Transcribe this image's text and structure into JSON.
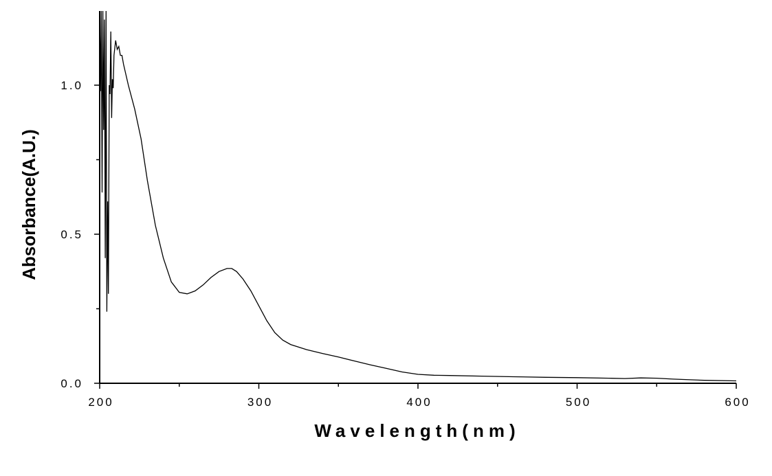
{
  "chart_data": {
    "type": "line",
    "title": "",
    "xlabel": "Wavelength(nm)",
    "ylabel": "Absorbance(A.U.)",
    "xlim": [
      200,
      600
    ],
    "ylim": [
      0,
      1.25
    ],
    "x_ticks": [
      200,
      300,
      400,
      500,
      600
    ],
    "x_tick_labels": [
      "200",
      "300",
      "400",
      "500",
      "600"
    ],
    "y_ticks": [
      0.0,
      0.5,
      1.0
    ],
    "y_tick_labels": [
      "0.0",
      "0.5",
      "1.0"
    ],
    "grid": false,
    "legend": "none",
    "series": [
      {
        "color": "#000000",
        "x": [
          200,
          200.5,
          201,
          201.5,
          202,
          202.5,
          203,
          203.5,
          204,
          204.5,
          205,
          205.5,
          206,
          206.5,
          207,
          207.5,
          208,
          208.5,
          209,
          210,
          211,
          212,
          213,
          214,
          215,
          218,
          222,
          226,
          230,
          235,
          240,
          245,
          250,
          255,
          260,
          265,
          270,
          275,
          280,
          283,
          286,
          290,
          295,
          300,
          305,
          310,
          315,
          320,
          330,
          340,
          350,
          360,
          370,
          380,
          390,
          400,
          410,
          420,
          440,
          460,
          480,
          500,
          520,
          530,
          540,
          550,
          560,
          580,
          600
        ],
        "y": [
          1.25,
          0.98,
          1.25,
          0.64,
          1.25,
          0.85,
          1.22,
          0.42,
          1.25,
          0.24,
          0.61,
          0.3,
          1.0,
          0.97,
          1.18,
          0.89,
          1.02,
          0.99,
          1.1,
          1.15,
          1.12,
          1.13,
          1.1,
          1.1,
          1.07,
          1.0,
          0.92,
          0.82,
          0.68,
          0.53,
          0.42,
          0.34,
          0.305,
          0.3,
          0.31,
          0.33,
          0.355,
          0.375,
          0.385,
          0.385,
          0.375,
          0.35,
          0.31,
          0.26,
          0.21,
          0.17,
          0.145,
          0.13,
          0.113,
          0.1,
          0.088,
          0.075,
          0.062,
          0.05,
          0.038,
          0.03,
          0.027,
          0.026,
          0.024,
          0.022,
          0.02,
          0.019,
          0.017,
          0.016,
          0.018,
          0.017,
          0.014,
          0.01,
          0.008
        ]
      }
    ]
  }
}
